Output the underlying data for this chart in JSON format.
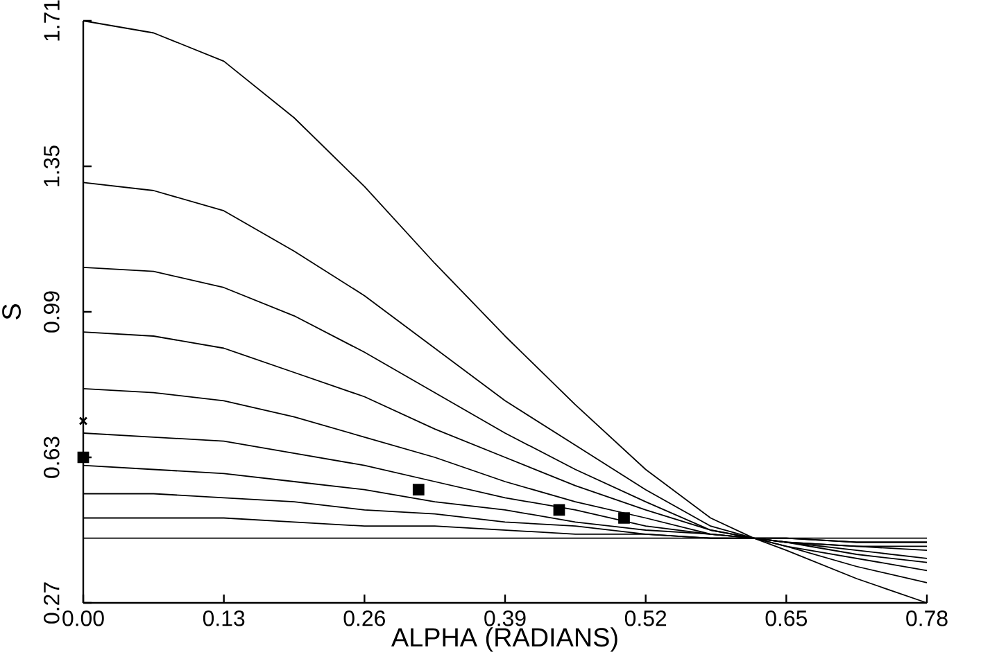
{
  "chart_data": {
    "type": "line",
    "xlabel": "ALPHA (RADIANS)",
    "ylabel": "S",
    "xlim": [
      0,
      0.78
    ],
    "ylim": [
      0.27,
      1.71
    ],
    "xticks": [
      {
        "value": 0,
        "label": "0.00"
      },
      0.13,
      0.26,
      0.39,
      0.52,
      0.65,
      0.78
    ],
    "yticks": [
      0.27,
      0.63,
      0.99,
      1.35,
      1.71
    ],
    "x": [
      0,
      0.065,
      0.13,
      0.195,
      0.26,
      0.325,
      0.39,
      0.455,
      0.52,
      0.58,
      0.62,
      0.65,
      0.715,
      0.78
    ],
    "series": [
      {
        "color": "#000000",
        "values": [
          1.71,
          1.68,
          1.61,
          1.47,
          1.3,
          1.11,
          0.93,
          0.76,
          0.6,
          0.48,
          0.43,
          0.4,
          0.33,
          0.27
        ]
      },
      {
        "color": "#000000",
        "values": [
          1.31,
          1.29,
          1.24,
          1.14,
          1.03,
          0.9,
          0.77,
          0.66,
          0.55,
          0.46,
          0.43,
          0.41,
          0.36,
          0.32
        ]
      },
      {
        "color": "#000000",
        "values": [
          1.1,
          1.09,
          1.05,
          0.98,
          0.89,
          0.79,
          0.69,
          0.6,
          0.52,
          0.45,
          0.43,
          0.41,
          0.38,
          0.35
        ]
      },
      {
        "color": "#000000",
        "values": [
          0.94,
          0.93,
          0.9,
          0.84,
          0.78,
          0.7,
          0.63,
          0.56,
          0.5,
          0.45,
          0.43,
          0.42,
          0.39,
          0.37
        ]
      },
      {
        "color": "#000000",
        "values": [
          0.8,
          0.79,
          0.77,
          0.73,
          0.68,
          0.63,
          0.57,
          0.52,
          0.48,
          0.44,
          0.43,
          0.42,
          0.4,
          0.38
        ]
      },
      {
        "color": "#000000",
        "values": [
          0.69,
          0.68,
          0.67,
          0.64,
          0.61,
          0.57,
          0.53,
          0.5,
          0.46,
          0.44,
          0.43,
          0.42,
          0.41,
          0.4
        ]
      },
      {
        "color": "#000000",
        "values": [
          0.61,
          0.6,
          0.59,
          0.57,
          0.55,
          0.52,
          0.5,
          0.47,
          0.45,
          0.44,
          0.43,
          0.42,
          0.41,
          0.41
        ]
      },
      {
        "color": "#000000",
        "values": [
          0.54,
          0.54,
          0.53,
          0.52,
          0.5,
          0.49,
          0.47,
          0.46,
          0.44,
          0.43,
          0.43,
          0.43,
          0.42,
          0.42
        ]
      },
      {
        "color": "#000000",
        "values": [
          0.48,
          0.48,
          0.48,
          0.47,
          0.46,
          0.46,
          0.45,
          0.44,
          0.44,
          0.43,
          0.43,
          0.43,
          0.42,
          0.42
        ]
      },
      {
        "color": "#000000",
        "x": [
          0,
          0.78
        ],
        "values": [
          0.43,
          0.43
        ]
      },
      {
        "type": "scatter",
        "marker": "cross",
        "color": "#000000",
        "x": [
          0
        ],
        "values": [
          0.72
        ]
      },
      {
        "type": "scatter",
        "marker": "square",
        "color": "#000000",
        "x": [
          0,
          0.31,
          0.44,
          0.5
        ],
        "values": [
          0.63,
          0.55,
          0.5,
          0.48
        ]
      }
    ]
  }
}
